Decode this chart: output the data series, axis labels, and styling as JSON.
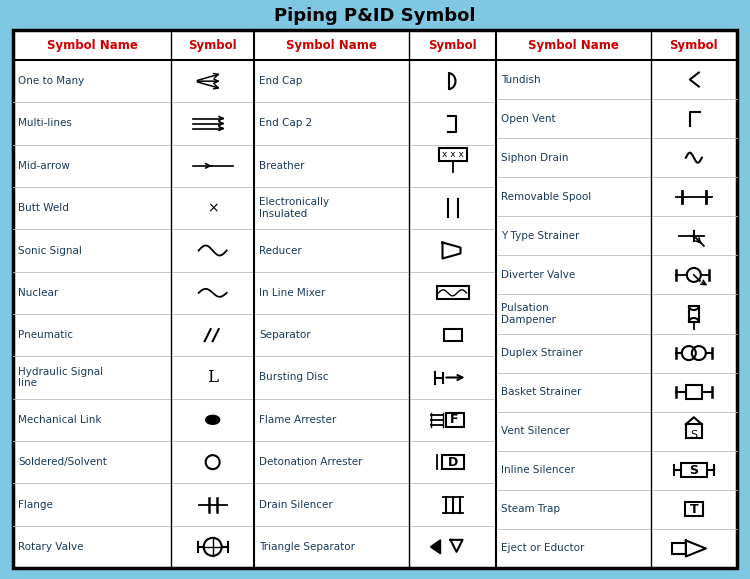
{
  "title": "Piping P&ID Symbol",
  "title_fontsize": 13,
  "header_color": "#CC0000",
  "background_outer": "#7EC8E3",
  "background_inner": "#FFFFFF",
  "border_color": "#000000",
  "text_color_dark": "#1A3A5C",
  "text_color_blue": "#1A6A9A",
  "row_line_color": "#BBBBBB",
  "col1_rows": [
    "One to Many",
    "Multi-lines",
    "Mid-arrow",
    "Butt Weld",
    "Sonic Signal",
    "Nuclear",
    "Pneumatic",
    "Hydraulic Signal\nline",
    "Mechanical Link",
    "Soldered/Solvent",
    "Flange",
    "Rotary Valve"
  ],
  "col2_rows": [
    "End Cap",
    "End Cap 2",
    "Breather",
    "Electronically\nInsulated",
    "Reducer",
    "In Line Mixer",
    "Separator",
    "Bursting Disc",
    "Flame Arrester",
    "Detonation Arrester",
    "Drain Silencer",
    "Triangle Separator"
  ],
  "col3_rows": [
    "Tundish",
    "Open Vent",
    "Siphon Drain",
    "Removable Spool",
    "Y Type Strainer",
    "Diverter Valve",
    "Pulsation\nDampener",
    "Duplex Strainer",
    "Basket Strainer",
    "Vent Silencer",
    "Inline Silencer",
    "Steam Trap",
    "Eject or Eductor"
  ]
}
